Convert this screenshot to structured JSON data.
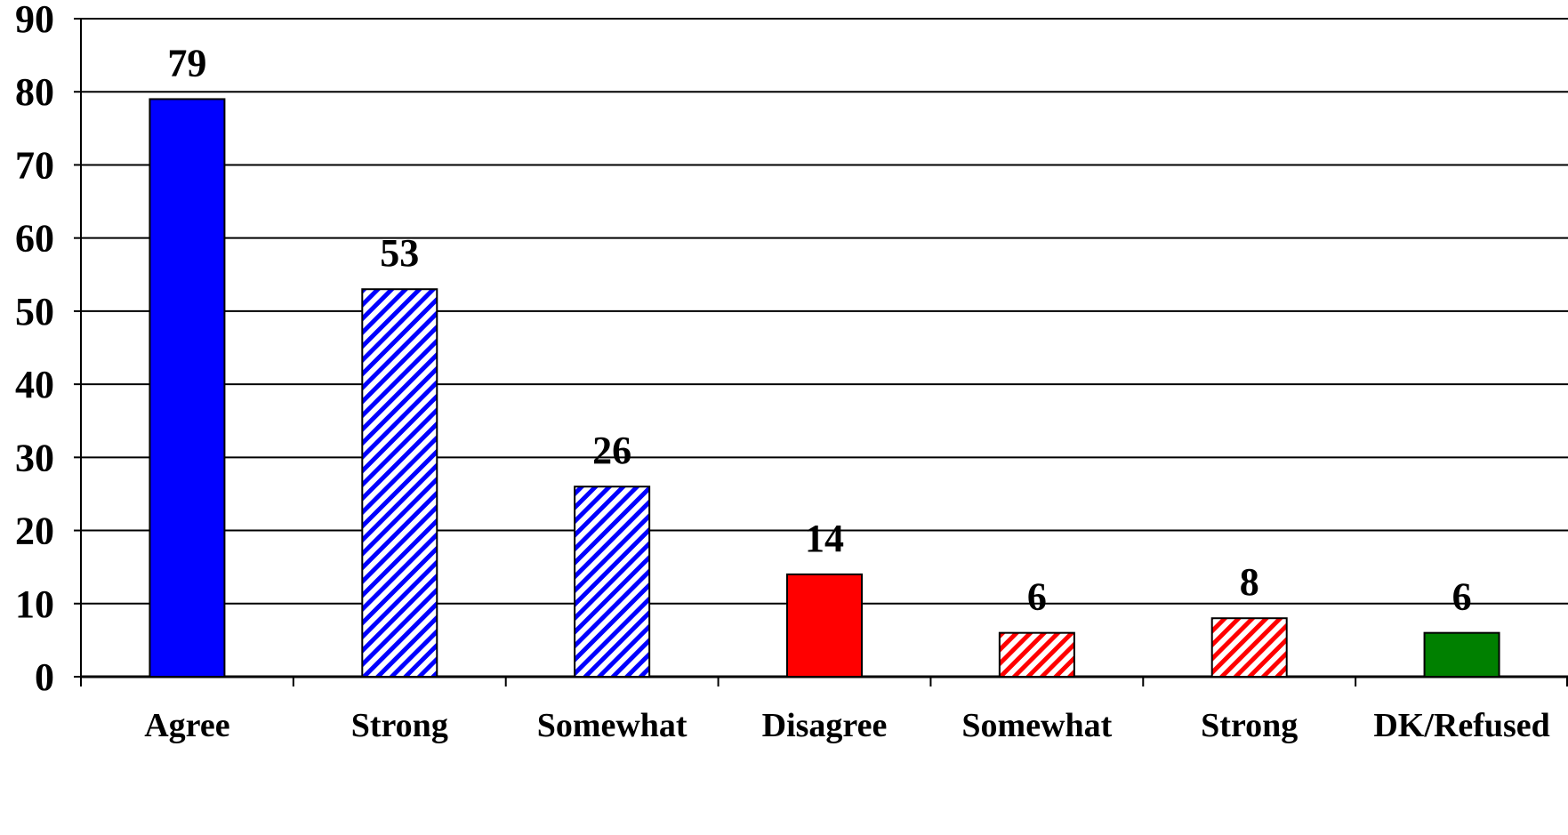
{
  "chart_data": {
    "type": "bar",
    "title": "",
    "xlabel": "",
    "ylabel": "",
    "ylim": [
      0,
      90
    ],
    "yticks": [
      0,
      10,
      20,
      30,
      40,
      50,
      60,
      70,
      80,
      90
    ],
    "grid": true,
    "legend": "none",
    "categories": [
      "Agree",
      "Strong",
      "Somewhat",
      "Disagree",
      "Somewhat",
      "Strong",
      "DK/Refused"
    ],
    "values": [
      79,
      53,
      26,
      14,
      6,
      8,
      6
    ],
    "data_labels": [
      "79",
      "53",
      "26",
      "14",
      "6",
      "8",
      "6"
    ],
    "bar_styles": [
      {
        "color": "#0000ff",
        "pattern": "solid"
      },
      {
        "color": "#0000ff",
        "pattern": "diagonal-hatch"
      },
      {
        "color": "#0000ff",
        "pattern": "diagonal-hatch"
      },
      {
        "color": "#ff0000",
        "pattern": "solid"
      },
      {
        "color": "#ff0000",
        "pattern": "diagonal-hatch"
      },
      {
        "color": "#ff0000",
        "pattern": "diagonal-hatch"
      },
      {
        "color": "#008000",
        "pattern": "solid"
      }
    ]
  }
}
